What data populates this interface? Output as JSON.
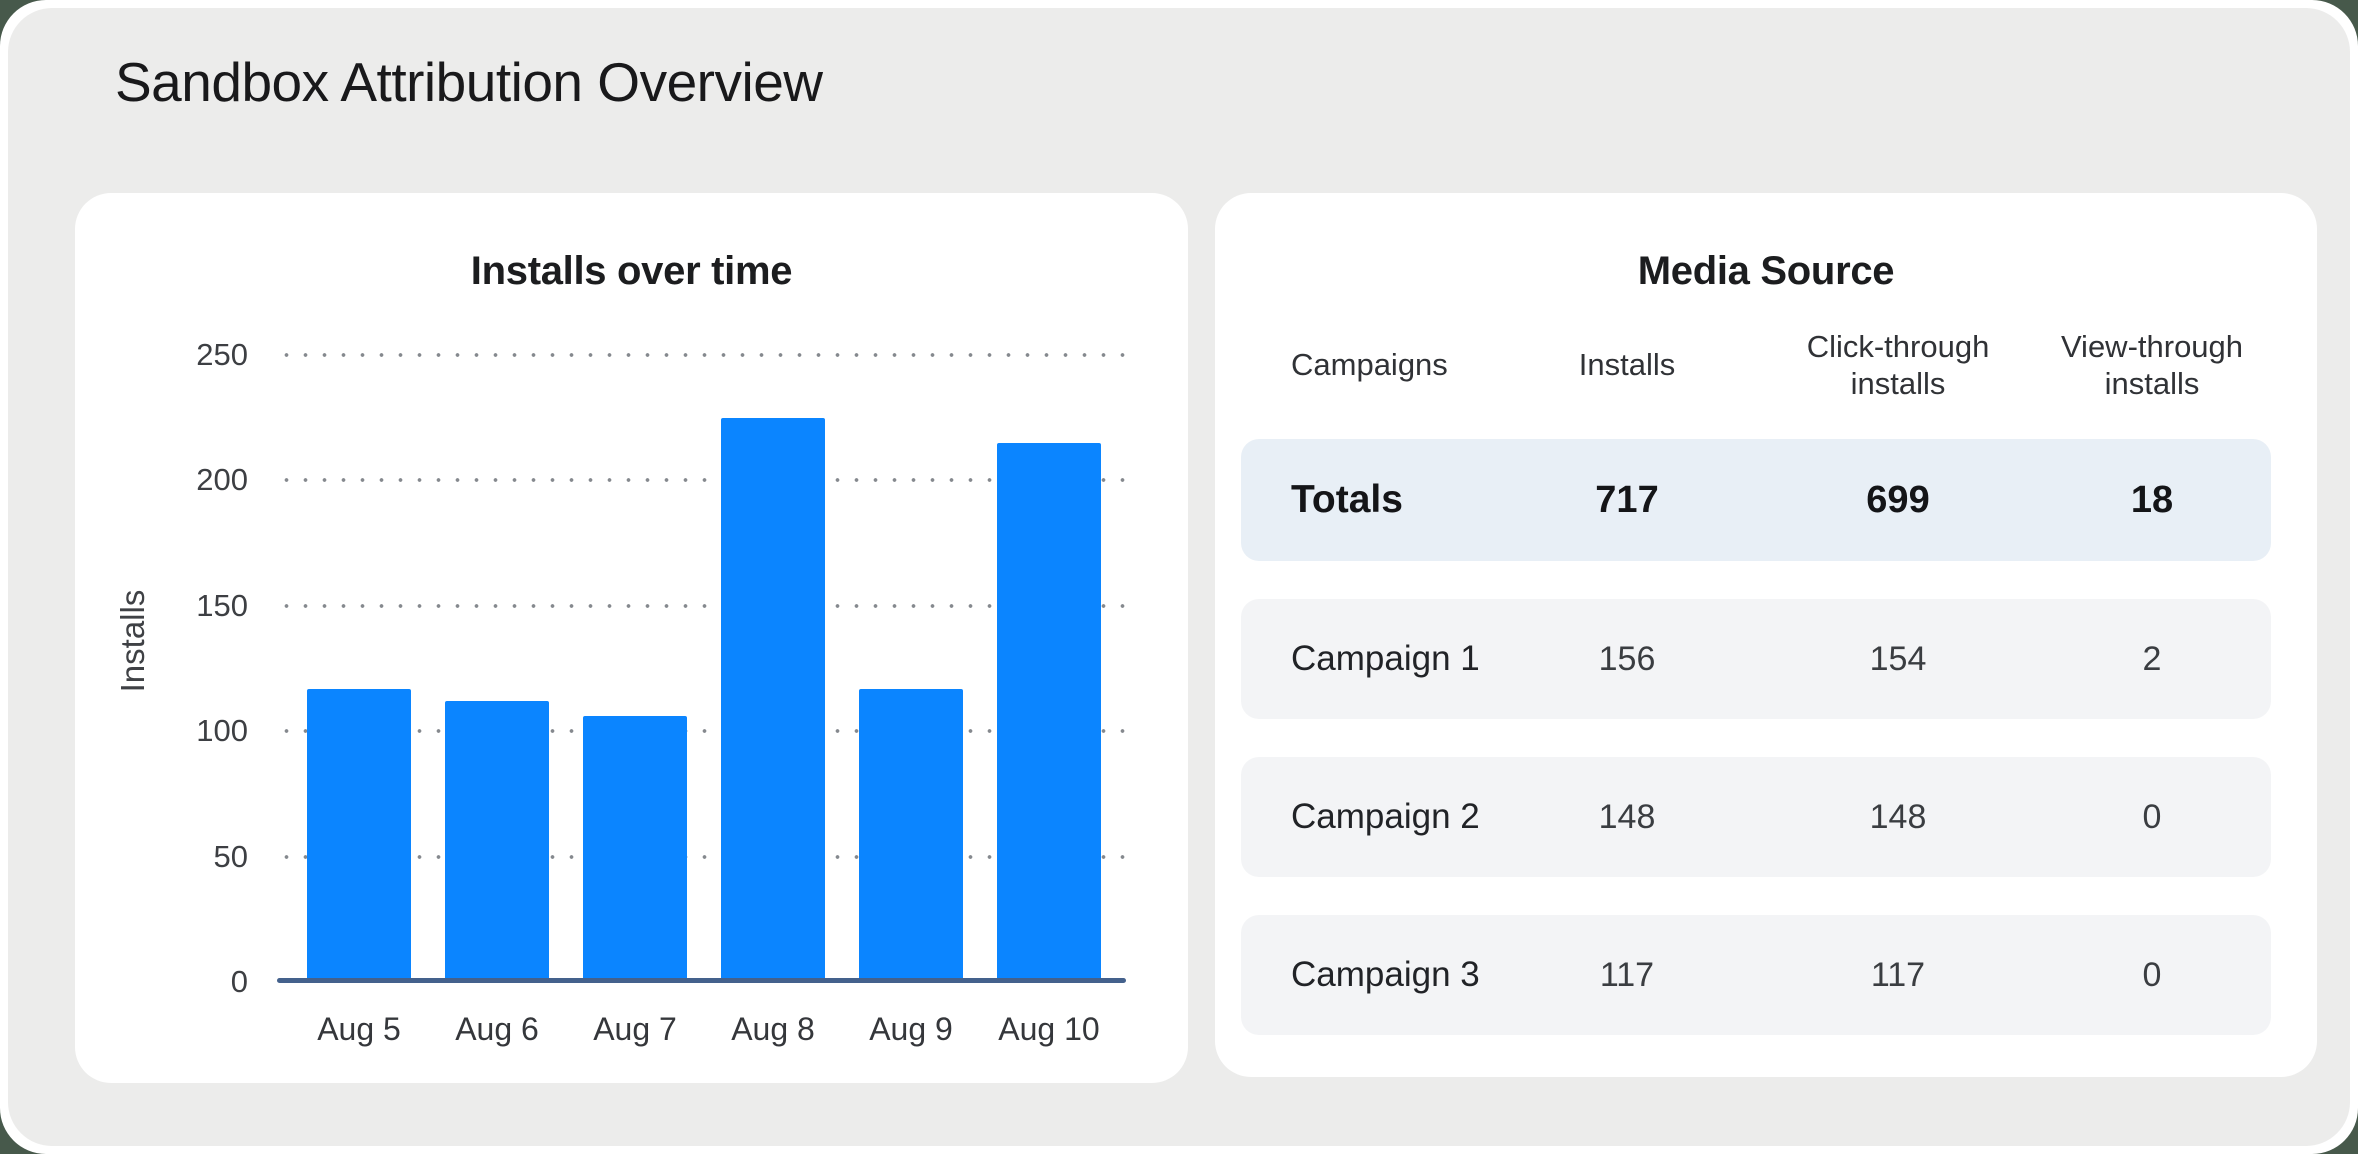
{
  "page": {
    "title": "Sandbox Attribution Overview"
  },
  "colors": {
    "frame_bg": "#ececeb",
    "card_bg": "#ffffff",
    "bar": "#0b85ff",
    "axis_line": "#44618c",
    "gridline_dot": "#85898e",
    "totals_row_bg": "#e8eff6",
    "campaign_row_bg": "#f3f4f6"
  },
  "chart_data": {
    "type": "bar",
    "title": "Installs over time",
    "xlabel": "",
    "ylabel": "Installs",
    "categories": [
      "Aug 5",
      "Aug 6",
      "Aug 7",
      "Aug 8",
      "Aug 9",
      "Aug 10"
    ],
    "values": [
      117,
      112,
      106,
      225,
      117,
      215
    ],
    "yticks": [
      0,
      50,
      100,
      150,
      200,
      250
    ],
    "ylim": [
      0,
      250
    ],
    "grid": "dotted horizontal",
    "legend": false,
    "series_color": "#0b85ff"
  },
  "table": {
    "title": "Media Source",
    "columns": [
      "Campaigns",
      "Installs",
      "Click-through installs",
      "View-through installs"
    ],
    "totals": {
      "label": "Totals",
      "installs": "717",
      "click_through": "699",
      "view_through": "18"
    },
    "rows": [
      {
        "label": "Campaign 1",
        "installs": "156",
        "click_through": "154",
        "view_through": "2"
      },
      {
        "label": "Campaign 2",
        "installs": "148",
        "click_through": "148",
        "view_through": "0"
      },
      {
        "label": "Campaign 3",
        "installs": "117",
        "click_through": "117",
        "view_through": "0"
      }
    ]
  }
}
